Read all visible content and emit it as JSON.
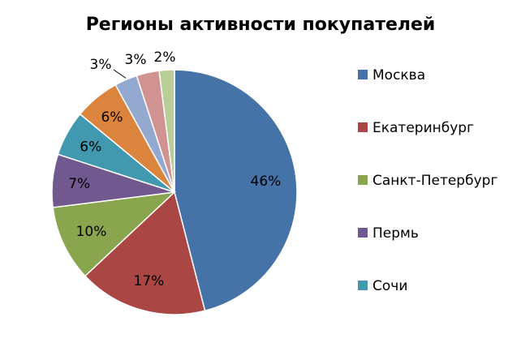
{
  "chart_data": {
    "type": "pie",
    "title": "Регионы активности покупателей",
    "slices": [
      {
        "name": "Москва",
        "value": 46,
        "label": "46%",
        "color": "#4572a7"
      },
      {
        "name": "Екатеринбург",
        "value": 17,
        "label": "17%",
        "color": "#aa4643"
      },
      {
        "name": "Санкт-Петербург",
        "value": 10,
        "label": "10%",
        "color": "#89a54e"
      },
      {
        "name": "Пермь",
        "value": 7,
        "label": "7%",
        "color": "#71588f"
      },
      {
        "name": "Сочи",
        "value": 6,
        "label": "6%",
        "color": "#4198af"
      },
      {
        "name": "",
        "value": 6,
        "label": "6%",
        "color": "#db843d"
      },
      {
        "name": "",
        "value": 3,
        "label": "3%",
        "color": "#93a9cf"
      },
      {
        "name": "",
        "value": 3,
        "label": "3%",
        "color": "#d19392"
      },
      {
        "name": "",
        "value": 2,
        "label": "2%",
        "color": "#b9cd96"
      }
    ],
    "legend": {
      "placement": "right",
      "entries": [
        "Москва",
        "Екатеринбург",
        "Санкт-Петербург",
        "Пермь",
        "Сочи"
      ]
    }
  }
}
